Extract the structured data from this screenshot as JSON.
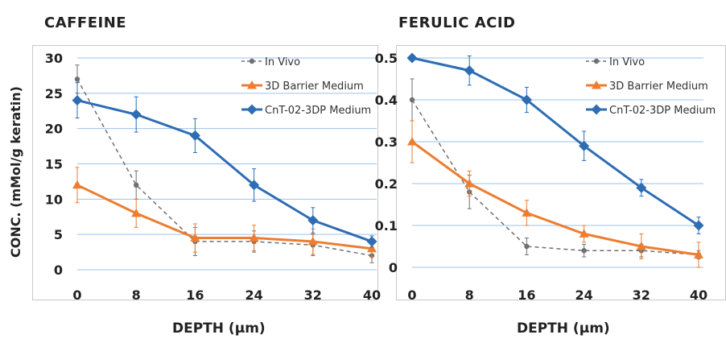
{
  "ylabel": "CONC. (mMol/g keratin)",
  "colors": {
    "in_vivo": "#707070",
    "barrier": "#ED7D31",
    "cnt": "#2E6DB4",
    "grid": "#9DC3E6"
  },
  "chart_data": [
    {
      "type": "line",
      "title": "CAFFEINE",
      "xlabel": "DEPTH (µm)",
      "ylabel": "",
      "x": [
        0,
        8,
        16,
        24,
        32,
        40
      ],
      "x_tick_labels": [
        "0",
        "8",
        "16",
        "24",
        "32",
        "40"
      ],
      "ylim": [
        0,
        30
      ],
      "y_ticks": [
        0,
        5,
        10,
        15,
        20,
        25,
        30
      ],
      "y_tick_labels": [
        "0",
        "5",
        "10",
        "15",
        "20",
        "25",
        "30"
      ],
      "grid": true,
      "legend_position": "top-right",
      "series": [
        {
          "name": "In Vivo",
          "key": "in_vivo",
          "style": "dashed",
          "marker": "circle",
          "values": [
            27,
            12,
            4,
            4,
            3.5,
            2
          ],
          "errors": [
            2,
            2,
            2,
            1.5,
            1.5,
            1
          ]
        },
        {
          "name": "3D Barrier Medium",
          "key": "barrier",
          "style": "solid",
          "marker": "triangle",
          "values": [
            12,
            8,
            4.5,
            4.5,
            4,
            3
          ],
          "errors": [
            2.5,
            2,
            2,
            1.8,
            1.8,
            1.2
          ]
        },
        {
          "name": "CnT-02-3DP Medium",
          "key": "cnt",
          "style": "solid",
          "marker": "diamond",
          "values": [
            24,
            22,
            19,
            12,
            7,
            4
          ],
          "errors": [
            2.5,
            2.5,
            2.4,
            2.3,
            1.8,
            0.8
          ]
        }
      ]
    },
    {
      "type": "line",
      "title": "FERULIC ACID",
      "xlabel": "DEPTH (µm)",
      "ylabel": "",
      "x": [
        0,
        8,
        16,
        24,
        32,
        40
      ],
      "x_tick_labels": [
        "0",
        "8",
        "16",
        "24",
        "32",
        "40"
      ],
      "ylim": [
        0,
        0.5
      ],
      "y_ticks": [
        0,
        0.1,
        0.2,
        0.3,
        0.4,
        0.5
      ],
      "y_tick_labels": [
        "0",
        "0.1",
        "0.2",
        "0.3",
        "0.4",
        "0.5"
      ],
      "grid": true,
      "legend_position": "top-right",
      "series": [
        {
          "name": "In Vivo",
          "key": "in_vivo",
          "style": "dashed",
          "marker": "circle",
          "values": [
            0.4,
            0.18,
            0.05,
            0.04,
            0.04,
            0.03
          ],
          "errors": [
            0.05,
            0.04,
            0.02,
            0.015,
            0.015,
            0.01
          ]
        },
        {
          "name": "3D Barrier Medium",
          "key": "barrier",
          "style": "solid",
          "marker": "triangle",
          "values": [
            0.3,
            0.2,
            0.13,
            0.08,
            0.05,
            0.03
          ],
          "errors": [
            0.05,
            0.03,
            0.03,
            0.02,
            0.03,
            0.03
          ]
        },
        {
          "name": "CnT-02-3DP Medium",
          "key": "cnt",
          "style": "solid",
          "marker": "diamond",
          "values": [
            0.5,
            0.47,
            0.4,
            0.29,
            0.19,
            0.1
          ],
          "errors": [
            0.005,
            0.035,
            0.03,
            0.035,
            0.02,
            0.02
          ]
        }
      ]
    }
  ]
}
